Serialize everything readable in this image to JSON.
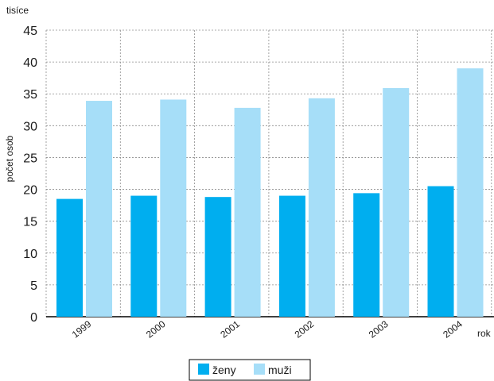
{
  "chart_data": {
    "type": "bar",
    "unit_label": "tisíce",
    "ylabel": "počet osob",
    "xlabel": "rok",
    "categories": [
      "1999",
      "2000",
      "2001",
      "2002",
      "2003",
      "2004"
    ],
    "series": [
      {
        "name": "ženy",
        "color": "#00aeef",
        "values": [
          18.5,
          19.0,
          18.8,
          19.0,
          19.4,
          20.5
        ]
      },
      {
        "name": "muži",
        "color": "#a6def8",
        "values": [
          33.9,
          34.1,
          32.8,
          34.3,
          35.9,
          39.0
        ]
      }
    ],
    "ylim": [
      0,
      45
    ],
    "yticks": [
      0,
      5,
      10,
      15,
      20,
      25,
      30,
      35,
      40,
      45
    ],
    "grid": true,
    "grid_style": "dashed",
    "legend_position": "bottom"
  }
}
